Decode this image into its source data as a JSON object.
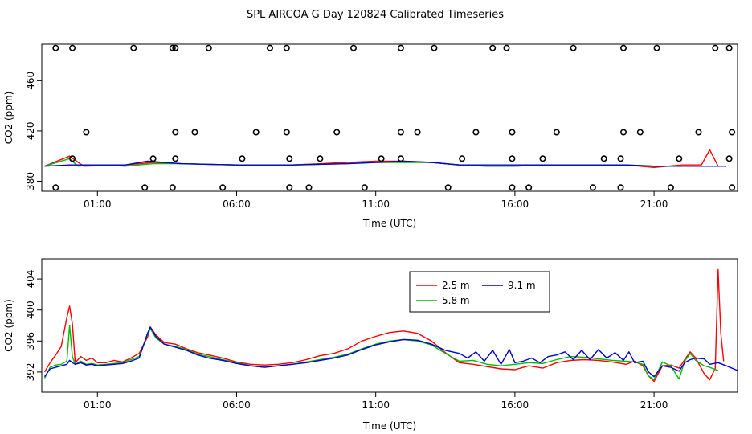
{
  "title": "SPL AIRCOA G  Day 120824  Calibrated Timeseries",
  "chart_data": [
    {
      "type": "line+scatter",
      "name": "top-panel",
      "xlabel": "Time (UTC)",
      "ylabel": "CO2 (ppm)",
      "xlim": [
        -1.0,
        24.0
      ],
      "ylim": [
        372,
        489
      ],
      "x_ticks": [
        1,
        6,
        11,
        16,
        21
      ],
      "x_tick_labels": [
        "01:00",
        "06:00",
        "11:00",
        "16:00",
        "21:00"
      ],
      "y_ticks": [
        380,
        420,
        460
      ],
      "y_tick_labels": [
        "380",
        "420",
        "460"
      ],
      "grid": false,
      "series": [
        {
          "name": "2.5 m",
          "color": "#ff0000",
          "x": [
            -0.9,
            0,
            0.5,
            2,
            3,
            4,
            6,
            8,
            10,
            11,
            12,
            13,
            14,
            15,
            16,
            17,
            18,
            19,
            20,
            21,
            22,
            22.7,
            23.0,
            23.3
          ],
          "values": [
            392,
            400,
            392,
            393,
            395,
            394,
            393,
            393,
            395,
            396,
            396,
            395,
            393,
            392,
            392,
            393,
            393,
            393,
            393,
            391,
            393,
            393,
            405,
            392
          ]
        },
        {
          "name": "5.8 m",
          "color": "#00bb00",
          "x": [
            -0.9,
            0,
            0.3,
            1,
            2,
            3,
            4,
            6,
            8,
            10,
            11,
            12,
            13,
            14,
            15,
            16,
            17,
            18,
            19,
            20,
            21,
            22,
            23,
            23.6
          ],
          "values": [
            392,
            398,
            392,
            393,
            392,
            394,
            394,
            393,
            393,
            394,
            395,
            395,
            395,
            393,
            392,
            392,
            393,
            393,
            393,
            393,
            392,
            392,
            392,
            392
          ]
        },
        {
          "name": "9.1 m",
          "color": "#0000cc",
          "x": [
            -0.9,
            0,
            1,
            2,
            2.8,
            4,
            6,
            8,
            10,
            11,
            12,
            13,
            14,
            15,
            16,
            17,
            18,
            19,
            20,
            21,
            22,
            23,
            23.6
          ],
          "values": [
            392,
            393,
            393,
            393,
            396,
            394,
            393,
            393,
            394,
            395,
            396,
            395,
            393,
            393,
            393,
            393,
            393,
            393,
            393,
            392,
            392,
            392,
            392
          ]
        }
      ],
      "points": {
        "name": "status codes",
        "x": [
          -0.5,
          0.1,
          2.3,
          3.7,
          3.8,
          5.0,
          7.2,
          7.8,
          10.2,
          11.9,
          13.1,
          15.2,
          15.7,
          18.1,
          19.9,
          21.1,
          23.2,
          23.7,
          0.1,
          0.6,
          3.0,
          3.8,
          3.8,
          4.5,
          6.2,
          6.7,
          7.8,
          7.9,
          9.0,
          9.6,
          11.2,
          11.9,
          11.9,
          12.5,
          14.1,
          14.6,
          15.9,
          15.9,
          17.0,
          17.5,
          19.2,
          19.8,
          19.9,
          20.5,
          21.9,
          22.6,
          23.7,
          23.8,
          -0.5,
          2.7,
          3.7,
          5.5,
          7.9,
          8.6,
          10.6,
          13.6,
          15.9,
          16.5,
          18.8,
          19.8,
          21.6,
          23.8
        ],
        "values": [
          486,
          486,
          486,
          486,
          486,
          486,
          486,
          486,
          486,
          486,
          486,
          486,
          486,
          486,
          486,
          486,
          486,
          486,
          398,
          419,
          398,
          398,
          419,
          419,
          398,
          419,
          419,
          398,
          398,
          419,
          398,
          398,
          419,
          419,
          398,
          419,
          398,
          419,
          398,
          419,
          398,
          398,
          419,
          419,
          398,
          419,
          398,
          419,
          375,
          375,
          375,
          375,
          375,
          375,
          375,
          375,
          375,
          375,
          375,
          375,
          375,
          375
        ]
      }
    },
    {
      "type": "line",
      "name": "bottom-panel",
      "xlabel": "Time (UTC)",
      "ylabel": "CO2 (ppm)",
      "xlim": [
        -1.0,
        24.0
      ],
      "ylim": [
        389.4,
        406.6
      ],
      "x_ticks": [
        1,
        6,
        11,
        16,
        21
      ],
      "x_tick_labels": [
        "01:00",
        "06:00",
        "11:00",
        "16:00",
        "21:00"
      ],
      "y_ticks": [
        392,
        396,
        400,
        404
      ],
      "y_tick_labels": [
        "392",
        "396",
        "400",
        "404"
      ],
      "grid": false,
      "legend": {
        "placement": "top-center",
        "entries": [
          "2.5 m",
          "5.8 m",
          "9.1 m"
        ]
      },
      "series": [
        {
          "name": "2.5 m",
          "color": "#ff0000",
          "x": [
            -0.9,
            -0.7,
            -0.5,
            -0.3,
            -0.1,
            0.0,
            0.1,
            0.2,
            0.4,
            0.6,
            0.8,
            1.0,
            1.3,
            1.6,
            1.9,
            2.2,
            2.5,
            2.8,
            2.9,
            3.1,
            3.4,
            3.8,
            4.2,
            4.6,
            5.0,
            5.5,
            6.0,
            6.5,
            7.0,
            7.5,
            8.0,
            8.5,
            9.0,
            9.5,
            10.0,
            10.5,
            11.0,
            11.5,
            12.0,
            12.5,
            13.0,
            13.5,
            14.0,
            14.5,
            15.0,
            15.5,
            16.0,
            16.5,
            17.0,
            17.5,
            18.0,
            18.5,
            19.0,
            19.5,
            20.0,
            20.3,
            20.6,
            20.8,
            21.0,
            21.3,
            21.6,
            21.9,
            22.1,
            22.3,
            22.5,
            22.8,
            23.0,
            23.2,
            23.3,
            23.4,
            23.5
          ],
          "values": [
            392.0,
            393.2,
            394.2,
            395.3,
            399.0,
            400.5,
            398.2,
            393.2,
            394.0,
            393.5,
            393.8,
            393.2,
            393.2,
            393.5,
            393.3,
            393.8,
            394.4,
            396.5,
            397.8,
            396.8,
            395.8,
            395.6,
            395.0,
            394.5,
            394.2,
            393.8,
            393.3,
            393.0,
            392.9,
            393.0,
            393.2,
            393.6,
            394.1,
            394.4,
            395.0,
            396.0,
            396.6,
            397.1,
            397.3,
            397.0,
            396.0,
            394.5,
            393.2,
            393.0,
            392.7,
            392.4,
            392.3,
            392.8,
            392.5,
            393.2,
            393.5,
            393.6,
            393.5,
            393.3,
            393.0,
            393.4,
            392.8,
            391.5,
            390.8,
            392.8,
            392.9,
            392.5,
            393.6,
            394.6,
            393.8,
            391.8,
            391.0,
            392.5,
            405.2,
            397.0,
            393.4
          ]
        },
        {
          "name": "5.8 m",
          "color": "#00bb00",
          "x": [
            -0.9,
            -0.7,
            -0.5,
            -0.3,
            -0.1,
            0.0,
            0.1,
            0.2,
            0.4,
            0.6,
            0.8,
            1.0,
            1.3,
            1.6,
            1.9,
            2.2,
            2.5,
            2.8,
            2.9,
            3.1,
            3.4,
            3.8,
            4.2,
            4.6,
            5.0,
            5.5,
            6.0,
            6.5,
            7.0,
            7.5,
            8.0,
            8.5,
            9.0,
            9.5,
            10.0,
            10.5,
            11.0,
            11.5,
            12.0,
            12.5,
            13.0,
            13.5,
            14.0,
            14.5,
            15.0,
            15.5,
            16.0,
            16.5,
            17.0,
            17.5,
            18.0,
            18.5,
            19.0,
            19.5,
            20.0,
            20.3,
            20.6,
            20.8,
            21.0,
            21.3,
            21.6,
            21.9,
            22.1,
            22.3,
            22.5,
            22.8,
            23.0,
            23.3
          ],
          "values": [
            391.2,
            392.6,
            392.9,
            393.0,
            393.4,
            398.0,
            394.0,
            393.0,
            393.4,
            393.0,
            393.1,
            392.9,
            393.0,
            393.1,
            393.2,
            393.6,
            394.0,
            396.8,
            397.6,
            396.4,
            395.6,
            395.3,
            394.9,
            394.3,
            394.0,
            393.6,
            393.2,
            392.8,
            392.6,
            392.8,
            393.0,
            393.3,
            393.6,
            393.9,
            394.3,
            395.0,
            395.6,
            396.0,
            396.2,
            396.0,
            395.5,
            394.4,
            393.4,
            393.5,
            393.0,
            392.8,
            393.0,
            393.2,
            393.1,
            393.6,
            394.0,
            393.9,
            393.7,
            393.5,
            393.4,
            393.3,
            393.0,
            391.5,
            391.0,
            393.3,
            392.8,
            391.1,
            393.4,
            394.4,
            393.5,
            392.8,
            392.6,
            392.2
          ]
        },
        {
          "name": "9.1 m",
          "color": "#0000cc",
          "x": [
            -0.9,
            -0.7,
            -0.5,
            -0.3,
            -0.1,
            0.0,
            0.1,
            0.2,
            0.4,
            0.6,
            0.8,
            1.0,
            1.3,
            1.6,
            1.9,
            2.2,
            2.5,
            2.8,
            2.9,
            3.1,
            3.4,
            3.8,
            4.2,
            4.6,
            5.0,
            5.5,
            6.0,
            6.5,
            7.0,
            7.5,
            8.0,
            8.5,
            9.0,
            9.5,
            10.0,
            10.5,
            11.0,
            11.5,
            12.0,
            12.5,
            13.0,
            13.5,
            14.0,
            14.3,
            14.6,
            14.9,
            15.2,
            15.5,
            15.8,
            16.0,
            16.3,
            16.6,
            16.9,
            17.2,
            17.5,
            17.8,
            18.1,
            18.4,
            18.7,
            19.0,
            19.3,
            19.6,
            19.9,
            20.1,
            20.3,
            20.6,
            20.8,
            21.0,
            21.3,
            21.6,
            21.9,
            22.1,
            22.3,
            22.5,
            22.8,
            23.0,
            23.3,
            23.6,
            24.0
          ],
          "values": [
            391.4,
            392.4,
            392.6,
            392.8,
            393.0,
            393.5,
            393.2,
            393.0,
            393.2,
            392.9,
            393.0,
            392.8,
            392.9,
            393.0,
            393.1,
            393.4,
            393.8,
            397.0,
            397.8,
            396.6,
            395.6,
            395.2,
            394.8,
            394.2,
            393.8,
            393.5,
            393.1,
            392.8,
            392.6,
            392.8,
            393.0,
            393.2,
            393.5,
            393.8,
            394.2,
            394.9,
            395.5,
            395.9,
            396.2,
            396.1,
            395.6,
            394.8,
            394.4,
            393.8,
            394.6,
            393.4,
            394.8,
            393.0,
            394.9,
            393.2,
            393.4,
            393.8,
            393.2,
            394.0,
            394.2,
            394.6,
            393.6,
            394.8,
            393.6,
            394.9,
            393.8,
            394.5,
            393.5,
            394.6,
            393.2,
            393.4,
            392.0,
            391.4,
            392.8,
            392.6,
            392.1,
            393.2,
            393.6,
            393.8,
            393.7,
            393.0,
            393.2,
            392.8,
            392.2
          ]
        }
      ]
    }
  ]
}
